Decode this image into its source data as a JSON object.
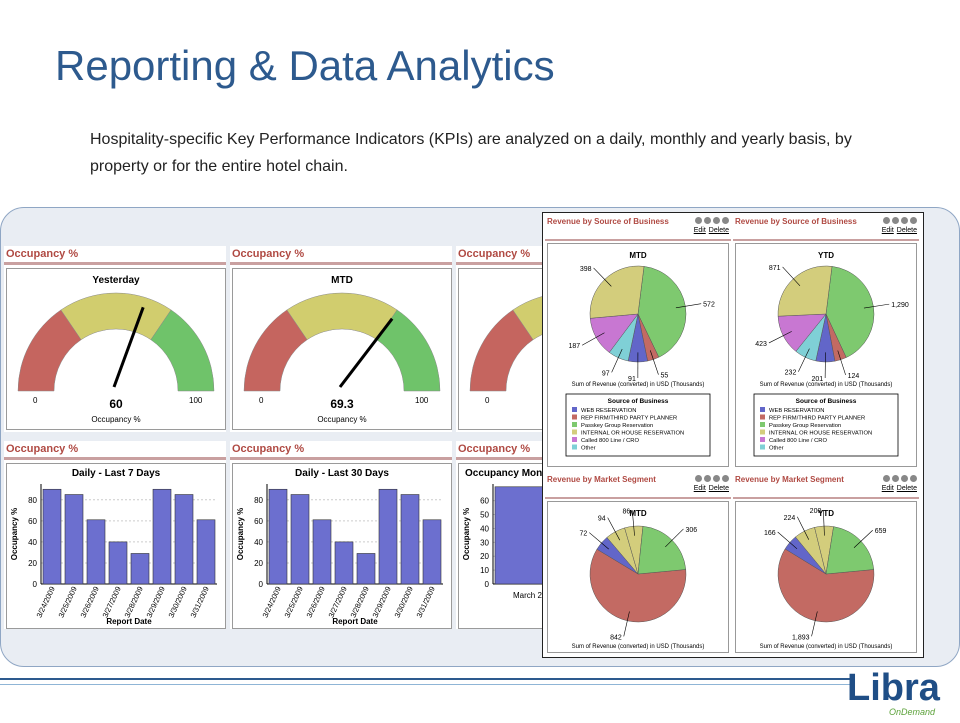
{
  "slide": {
    "title": "Reporting & Data Analytics",
    "subtitle": "Hospitality-specific Key Performance Indicators (KPIs) are analyzed on a daily, monthly and yearly basis, by property or for the entire hotel chain."
  },
  "gauges": [
    {
      "panel_title": "Occupancy %",
      "title": "Yesterday",
      "value": "60",
      "value_num": 60,
      "min": "0",
      "max": "100",
      "label": "Occupancy %"
    },
    {
      "panel_title": "Occupancy %",
      "title": "MTD",
      "value": "69.3",
      "value_num": 69.3,
      "min": "0",
      "max": "100",
      "label": "Occupancy %"
    },
    {
      "panel_title": "Occupancy %",
      "min": "0"
    }
  ],
  "bar_panels": [
    {
      "panel_title": "Occupancy %",
      "title": "Daily - Last 7 Days",
      "xlabel": "Report Date",
      "ylabel": "Occupancy %"
    },
    {
      "panel_title": "Occupancy %",
      "title": "Daily - Last 30 Days",
      "xlabel": "Report Date",
      "ylabel": "Occupancy %"
    },
    {
      "panel_title": "Occupancy %",
      "title": "Occupancy Mont",
      "ylabel": "Occupancy %",
      "category": "March 2"
    }
  ],
  "revenue": {
    "panel_title_source": "Revenue by Source of Business",
    "panel_title_market": "Revenue by Market Segment",
    "edit": "Edit",
    "delete": "Delete",
    "xcaption": "Sum of Revenue (converted) in USD (Thousands)",
    "legend_title": "Source of Business",
    "legend_items": [
      "WEB RESERVATION",
      "REP FIRM/THIRD PARTY PLANNER",
      "Passkey Group Reservation",
      "INTERNAL OR HOUSE RESERVATION",
      "Called 800 Line / CRO",
      "Other"
    ],
    "charts": [
      {
        "title": "MTD"
      },
      {
        "title": "YTD"
      },
      {
        "title": "MTD"
      },
      {
        "title": "YTD"
      }
    ]
  },
  "logo": {
    "text": "Libra",
    "sub": "OnDemand"
  },
  "colors": {
    "title": "#2d5a8e",
    "bar": "#6c6fcf",
    "red": "#c5655f",
    "yellow": "#d1cd6e",
    "green": "#6fc36a",
    "pie_blue": "#6266c9",
    "pie_red": "#c36a63",
    "pie_green": "#7ec96f",
    "pie_yellow": "#d3cd7c",
    "pie_purple": "#c877d2",
    "pie_cyan": "#7fd0d6"
  },
  "chart_data": [
    {
      "type": "bar",
      "title": "Daily - Last 7 Days",
      "xlabel": "Report Date",
      "ylabel": "Occupancy %",
      "categories": [
        "3/24/2009",
        "3/25/2009",
        "3/26/2009",
        "3/27/2009",
        "3/28/2009",
        "3/29/2009",
        "3/30/2009",
        "3/31/2009"
      ],
      "values": [
        90,
        85,
        61,
        40,
        29,
        90,
        85,
        61
      ],
      "yticks": [
        "0",
        "20",
        "40",
        "60",
        "80"
      ],
      "ylim": [
        0,
        95
      ]
    },
    {
      "type": "bar",
      "title": "Daily - Last 30 Days",
      "xlabel": "Report Date",
      "ylabel": "Occupancy %",
      "categories": [
        "3/24/2009",
        "3/25/2009",
        "3/26/2009",
        "3/27/2009",
        "3/28/2009",
        "3/29/2009",
        "3/30/2009",
        "3/31/2009"
      ],
      "values": [
        90,
        85,
        61,
        40,
        29,
        90,
        85,
        61
      ],
      "yticks": [
        "0",
        "20",
        "40",
        "60",
        "80"
      ],
      "ylim": [
        0,
        95
      ]
    },
    {
      "type": "bar",
      "title": "Occupancy Mont",
      "ylabel": "Occupancy %",
      "categories": [
        "March 2"
      ],
      "values": [
        70
      ],
      "yticks": [
        "0",
        "10",
        "20",
        "30",
        "40",
        "50",
        "60"
      ],
      "ylim": [
        0,
        72
      ]
    },
    {
      "type": "pie",
      "title": "MTD",
      "labels": [
        "572",
        "55",
        "91",
        "97",
        "187",
        "398"
      ],
      "values": [
        572,
        55,
        91,
        97,
        187,
        398
      ]
    },
    {
      "type": "pie",
      "title": "YTD",
      "labels": [
        "1,290",
        "124",
        "201",
        "232",
        "423",
        "871"
      ],
      "values": [
        1290,
        124,
        201,
        232,
        423,
        871
      ]
    },
    {
      "type": "pie",
      "title": "MTD",
      "labels": [
        "842",
        "72",
        "94",
        "86",
        "306"
      ],
      "values": [
        842,
        72,
        94,
        86,
        306
      ]
    },
    {
      "type": "pie",
      "title": "YTD",
      "labels": [
        "1,893",
        "166",
        "224",
        "200",
        "659"
      ],
      "values": [
        1893,
        166,
        224,
        200,
        659
      ]
    }
  ]
}
